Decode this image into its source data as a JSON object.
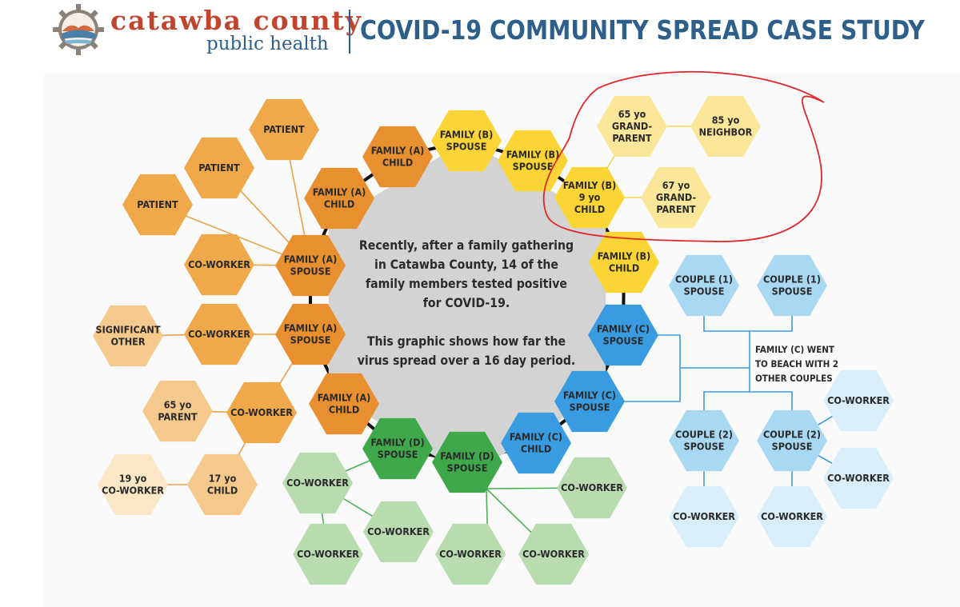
{
  "header": {
    "org_name": "catawba county",
    "org_sub": "public health",
    "title": "COVID-19 COMMUNITY SPREAD CASE STUDY"
  },
  "center_text": {
    "line1": "Recently, after a family gathering in Catawba County, 14 of the family members tested positive for COVID-19.",
    "line2": "This graphic shows how far the virus spread over a 16 day period."
  },
  "beach_note": "FAMILY (C) WENT TO BEACH WITH 2 OTHER COUPLES",
  "colors": {
    "orange_dark": "#e8902f",
    "orange_mid": "#efa94a",
    "orange_light": "#f5c98b",
    "orange_pale": "#fbe6c6",
    "yellow": "#fad535",
    "yellow_light": "#fbe79a",
    "green_dark": "#3fa84a",
    "green_light": "#b8dcb0",
    "blue_dark": "#3a9ce0",
    "blue_light": "#a9d8f3",
    "blue_pale": "#d8eefb",
    "hub": "#d3d3d3",
    "annotation": "#e0282b"
  },
  "nodes": [
    {
      "id": "pat1",
      "label": [
        "PATIENT"
      ],
      "color": "orange_mid"
    },
    {
      "id": "pat2",
      "label": [
        "PATIENT"
      ],
      "color": "orange_mid"
    },
    {
      "id": "pat3",
      "label": [
        "PATIENT"
      ],
      "color": "orange_mid"
    },
    {
      "id": "cw_a1",
      "label": [
        "CO-WORKER"
      ],
      "color": "orange_mid"
    },
    {
      "id": "fa_sp1",
      "label": [
        "FAMILY (A)",
        "SPOUSE"
      ],
      "color": "orange_dark"
    },
    {
      "id": "so",
      "label": [
        "SIGNIFICANT",
        "OTHER"
      ],
      "color": "orange_light"
    },
    {
      "id": "cw_a2",
      "label": [
        "CO-WORKER"
      ],
      "color": "orange_mid"
    },
    {
      "id": "fa_sp2",
      "label": [
        "FAMILY (A)",
        "SPOUSE"
      ],
      "color": "orange_dark"
    },
    {
      "id": "p65",
      "label": [
        "65 yo",
        "PARENT"
      ],
      "color": "orange_light"
    },
    {
      "id": "cw_a3",
      "label": [
        "CO-WORKER"
      ],
      "color": "orange_mid"
    },
    {
      "id": "fa_ch3",
      "label": [
        "FAMILY (A)",
        "CHILD"
      ],
      "color": "orange_dark"
    },
    {
      "id": "cw19",
      "label": [
        "19 yo",
        "CO-WORKER"
      ],
      "color": "orange_pale"
    },
    {
      "id": "ch17",
      "label": [
        "17 yo",
        "CHILD"
      ],
      "color": "orange_light"
    },
    {
      "id": "fa_ch1",
      "label": [
        "FAMILY (A)",
        "CHILD"
      ],
      "color": "orange_dark"
    },
    {
      "id": "fa_ch2",
      "label": [
        "FAMILY (A)",
        "CHILD"
      ],
      "color": "orange_dark"
    },
    {
      "id": "fb_sp1",
      "label": [
        "FAMILY (B)",
        "SPOUSE"
      ],
      "color": "yellow"
    },
    {
      "id": "fb_sp2",
      "label": [
        "FAMILY (B)",
        "SPOUSE"
      ],
      "color": "yellow"
    },
    {
      "id": "fb_9",
      "label": [
        "FAMILY (B)",
        "9 yo",
        "CHILD"
      ],
      "color": "yellow"
    },
    {
      "id": "gp65",
      "label": [
        "65 yo",
        "GRAND-",
        "PARENT"
      ],
      "color": "yellow_light"
    },
    {
      "id": "nb85",
      "label": [
        "85 yo",
        "NEIGHBOR"
      ],
      "color": "yellow_light"
    },
    {
      "id": "gp67",
      "label": [
        "67 yo",
        "GRAND-",
        "PARENT"
      ],
      "color": "yellow_light"
    },
    {
      "id": "fb_ch",
      "label": [
        "FAMILY (B)",
        "CHILD"
      ],
      "color": "yellow"
    },
    {
      "id": "fc_sp1",
      "label": [
        "FAMILY (C)",
        "SPOUSE"
      ],
      "color": "blue_dark"
    },
    {
      "id": "fc_sp2",
      "label": [
        "FAMILY (C)",
        "SPOUSE"
      ],
      "color": "blue_dark"
    },
    {
      "id": "fc_ch",
      "label": [
        "FAMILY (C)",
        "CHILD"
      ],
      "color": "blue_dark"
    },
    {
      "id": "fd_sp1",
      "label": [
        "FAMILY (D)",
        "SPOUSE"
      ],
      "color": "green_dark"
    },
    {
      "id": "fd_sp2",
      "label": [
        "FAMILY (D)",
        "SPOUSE"
      ],
      "color": "green_dark"
    },
    {
      "id": "cw_g1",
      "label": [
        "CO-WORKER"
      ],
      "color": "green_light"
    },
    {
      "id": "cw_g2",
      "label": [
        "CO-WORKER"
      ],
      "color": "green_light"
    },
    {
      "id": "cw_g3",
      "label": [
        "CO-WORKER"
      ],
      "color": "green_light"
    },
    {
      "id": "cw_g4",
      "label": [
        "CO-WORKER"
      ],
      "color": "green_light"
    },
    {
      "id": "cw_g5",
      "label": [
        "CO-WORKER"
      ],
      "color": "green_light"
    },
    {
      "id": "cw_g6",
      "label": [
        "CO-WORKER"
      ],
      "color": "green_light"
    },
    {
      "id": "c1a",
      "label": [
        "COUPLE (1)",
        "SPOUSE"
      ],
      "color": "blue_light"
    },
    {
      "id": "c1b",
      "label": [
        "COUPLE (1)",
        "SPOUSE"
      ],
      "color": "blue_light"
    },
    {
      "id": "c2a",
      "label": [
        "COUPLE (2)",
        "SPOUSE"
      ],
      "color": "blue_light"
    },
    {
      "id": "c2b",
      "label": [
        "COUPLE (2)",
        "SPOUSE"
      ],
      "color": "blue_light"
    },
    {
      "id": "cw_b1",
      "label": [
        "CO-WORKER"
      ],
      "color": "blue_pale"
    },
    {
      "id": "cw_b2",
      "label": [
        "CO-WORKER"
      ],
      "color": "blue_pale"
    },
    {
      "id": "cw_b3",
      "label": [
        "CO-WORKER"
      ],
      "color": "blue_pale"
    },
    {
      "id": "cw_b4",
      "label": [
        "CO-WORKER"
      ],
      "color": "blue_pale"
    }
  ]
}
